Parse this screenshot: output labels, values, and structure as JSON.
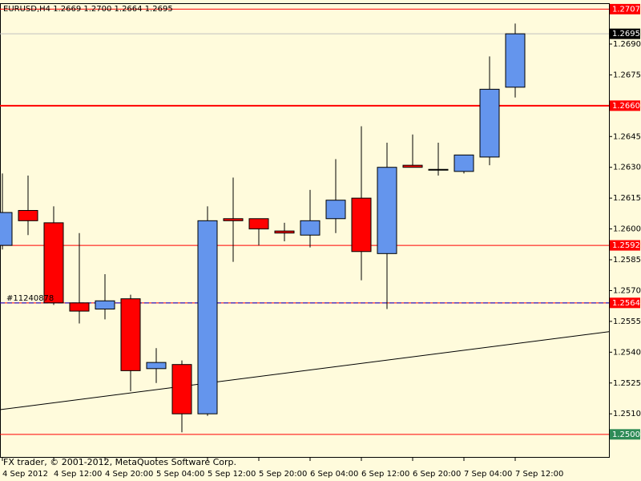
{
  "chart_data": {
    "type": "candlestick",
    "title": "EURUSD,H4  1.2669 1.2700 1.2664 1.2695",
    "footer": "FX trader, © 2001-2012, MetaQuotes Software Corp.",
    "order_label": "#11240878",
    "categories": [
      "4 Sep 2012",
      null,
      "4 Sep 12:00",
      null,
      "4 Sep 20:00",
      null,
      "5 Sep 04:00",
      null,
      "5 Sep 12:00",
      null,
      "5 Sep 20:00",
      null,
      "6 Sep 04:00",
      null,
      "6 Sep 12:00",
      null,
      "6 Sep 20:00",
      null,
      "7 Sep 04:00",
      null,
      "7 Sep 12:00"
    ],
    "open": [
      1.2592,
      1.2609,
      1.2603,
      1.2564,
      1.2561,
      1.2566,
      1.2532,
      1.2534,
      1.251,
      1.2605,
      1.2605,
      1.2599,
      1.2597,
      1.2605,
      1.2615,
      1.2588,
      1.2631,
      1.2629,
      1.2628,
      1.2635,
      1.2669
    ],
    "high": [
      1.2627,
      1.2626,
      1.2611,
      1.2598,
      1.2578,
      1.2568,
      1.2542,
      1.2536,
      1.2611,
      1.2625,
      1.2605,
      1.2603,
      1.2619,
      1.2634,
      1.265,
      1.2642,
      1.2646,
      1.2642,
      1.2636,
      1.2684,
      1.27
    ],
    "low": [
      1.259,
      1.2597,
      1.2563,
      1.2554,
      1.2556,
      1.2521,
      1.2525,
      1.2501,
      1.2509,
      1.2584,
      1.2592,
      1.2594,
      1.2591,
      1.2598,
      1.2575,
      1.2561,
      1.263,
      1.2626,
      1.2627,
      1.2631,
      1.2664
    ],
    "close": [
      1.2608,
      1.2604,
      1.2564,
      1.256,
      1.2565,
      1.2531,
      1.2535,
      1.251,
      1.2604,
      1.2604,
      1.26,
      1.2598,
      1.2604,
      1.2614,
      1.2589,
      1.263,
      1.263,
      1.2629,
      1.2636,
      1.2668,
      1.2695
    ],
    "up_color": "#6495ed",
    "down_color": "#ff0000",
    "ylim": [
      1.2489,
      1.27095
    ],
    "yticks": [
      {
        "value": 1.269,
        "label": "1.2690"
      },
      1.2675,
      1.2645,
      {
        "value": 1.263,
        "label": "1.2630"
      },
      1.2615,
      {
        "value": 1.26,
        "label": "1.2600"
      },
      1.2585,
      {
        "value": 1.257,
        "label": "1.2570"
      },
      1.2555,
      {
        "value": 1.254,
        "label": "1.2540"
      },
      1.2525,
      {
        "value": 1.251,
        "label": "1.2510"
      }
    ],
    "levels": [
      {
        "value": 1.2707,
        "color": "#ff0000"
      },
      {
        "value": 1.2695,
        "color": "#000000"
      },
      {
        "value": 1.266,
        "label": "1.2660",
        "color": "#ff0000"
      },
      {
        "value": 1.2592,
        "color": "#ff0000"
      },
      {
        "value": 1.2564,
        "color": "#ff0000"
      },
      {
        "value": 1.25,
        "label": "1.2500",
        "color": "#2e8b57"
      }
    ],
    "trendline": [
      1.2512,
      1.255
    ]
  }
}
